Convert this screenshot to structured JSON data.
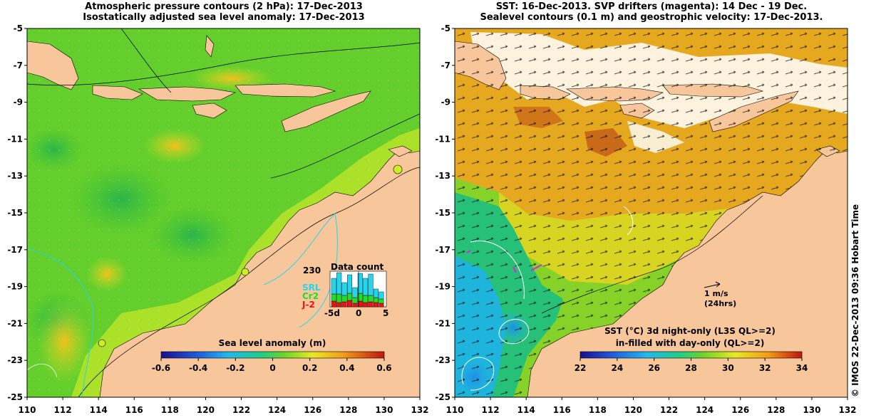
{
  "left_panel": {
    "title_line1": "Atmospheric pressure contours (2 hPa): 17-Dec-2013",
    "title_line2": "Isostatically adjusted sea level anomaly: 17-Dec-2013",
    "x_ticks": [
      "110",
      "112",
      "114",
      "116",
      "118",
      "120",
      "122",
      "124",
      "126",
      "128",
      "130",
      "132"
    ],
    "y_ticks": [
      "-5",
      "-7",
      "-9",
      "-11",
      "-13",
      "-15",
      "-17",
      "-19",
      "-21",
      "-23",
      "-25"
    ],
    "colorbar": {
      "label": "Sea level anomaly (m)",
      "ticks": [
        "-0.6",
        "-0.4",
        "-0.2",
        "0",
        "0.2",
        "0.4",
        "0.6"
      ]
    },
    "data_count": {
      "title": "Data count",
      "max_label": "230",
      "x_ticks": [
        "-5d",
        "0",
        "5"
      ],
      "legend": [
        {
          "name": "SRL",
          "color": "#22d6f0"
        },
        {
          "name": "Cr2",
          "color": "#22dd22"
        },
        {
          "name": "J-2",
          "color": "#ee1111"
        }
      ]
    }
  },
  "right_panel": {
    "title_line1": "SST: 16-Dec-2013. SVP drifters (magenta): 14 Dec - 19 Dec.",
    "title_line2": "Sealevel contours (0.1 m) and geostrophic velocity: 17-Dec-2013.",
    "x_ticks": [
      "110",
      "112",
      "114",
      "116",
      "118",
      "120",
      "122",
      "124",
      "126",
      "128",
      "130",
      "132"
    ],
    "y_ticks": [
      "-5",
      "-7",
      "-9",
      "-11",
      "-13",
      "-15",
      "-17",
      "-19",
      "-21",
      "-23",
      "-25"
    ],
    "colorbar": {
      "label_line1": "SST (°C)  3d night-only (L3S QL>=2)",
      "label_line2": "in-filled with day-only (QL>=2)",
      "ticks": [
        "22",
        "24",
        "26",
        "28",
        "30",
        "32",
        "34"
      ]
    },
    "velocity_key": {
      "label_line1": "1 m/s",
      "label_line2": "(24hrs)"
    }
  },
  "credit": "© IMOS 22-Dec-2013 09:36 Hobart Time",
  "colors": {
    "land": "#f7c69b",
    "ocean_left": "#5fcd2a",
    "ocean_right_warm": "#e6a81e"
  }
}
